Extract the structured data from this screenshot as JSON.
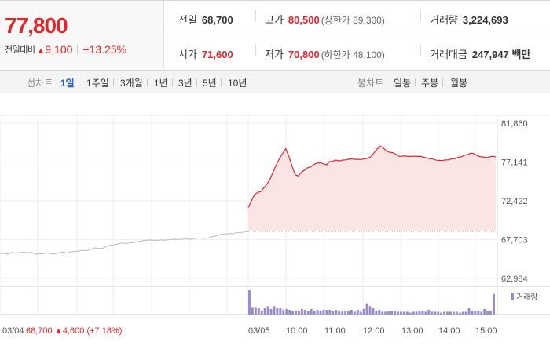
{
  "header": {
    "price": "77,800",
    "change_label": "전일대비",
    "change_arrow": "▲",
    "change_value": "9,100",
    "change_pct": "+13.25%"
  },
  "stats": {
    "prev_close": {
      "label": "전일",
      "value": "68,700"
    },
    "high": {
      "label": "고가",
      "value": "80,500",
      "sub": "(상한가 89,300)"
    },
    "volume": {
      "label": "거래량",
      "value": "3,224,693"
    },
    "open": {
      "label": "시가",
      "value": "71,600"
    },
    "low": {
      "label": "저가",
      "value": "70,800",
      "sub": "(하한가 48,100)"
    },
    "amount": {
      "label": "거래대금",
      "value": "247,947 백만"
    }
  },
  "tabs": {
    "line_title": "선차트",
    "line_items": [
      "1일",
      "1주일",
      "3개월",
      "1년",
      "3년",
      "5년",
      "10년"
    ],
    "active_index": 0,
    "candle_title": "봉차트",
    "candle_items": [
      "일봉",
      "주봉",
      "월봉"
    ]
  },
  "chart_data": {
    "type": "line",
    "y_ticks": [
      "81,860",
      "77,141",
      "72,422",
      "67,703",
      "62,984"
    ],
    "ylim": [
      62984,
      81860
    ],
    "x_ticks": [
      "03/05",
      "10:00",
      "11:00",
      "12:00",
      "13:00",
      "14:00",
      "15:00"
    ],
    "prev_day_label": "03/04",
    "prev_day_close": "68,700",
    "prev_day_change": "▲4,600 (+7.18%)",
    "volume_legend": "거래량",
    "colors": {
      "up": "#e1262c",
      "prev": "#bbbbbb",
      "fill": "#fbe4e4",
      "volume": "#9c8ac9"
    },
    "prev_day_series": [
      66010,
      66046,
      65958,
      66178,
      66042,
      66144,
      66174,
      66102,
      66190,
      65943,
      65983,
      66001,
      66121,
      65990,
      65958,
      66123,
      66217,
      66063,
      66228,
      66273,
      66319,
      66417,
      66368,
      66503,
      66697,
      66627,
      66649,
      66862,
      67027,
      67055,
      67180,
      67306,
      67226,
      67321,
      67348,
      67461,
      67549,
      67617,
      67654,
      67622,
      67622,
      67674,
      67629,
      67706,
      67756,
      67741,
      67725,
      67830,
      67725,
      67832,
      67877,
      67890,
      67861,
      67920,
      68081,
      68169,
      68348,
      68332,
      68451,
      68422,
      68550,
      68556,
      68627,
      68700
    ],
    "today_series": [
      71600,
      72411,
      73193,
      73453,
      73547,
      74010,
      74460,
      75089,
      76001,
      76836,
      77599,
      78184,
      78757,
      77804,
      76631,
      75582,
      75450,
      75918,
      76167,
      76463,
      76563,
      76858,
      77013,
      77056,
      76919,
      76804,
      77189,
      77225,
      77376,
      77264,
      77366,
      77396,
      77473,
      77534,
      77455,
      77477,
      77445,
      77518,
      77585,
      77738,
      78175,
      78646,
      79074,
      78883,
      78509,
      78334,
      78292,
      78114,
      77825,
      77837,
      77876,
      77832,
      77808,
      77854,
      77821,
      77831,
      77725,
      77639,
      77533,
      77502,
      77360,
      77343,
      77324,
      77393,
      77399,
      77543,
      77546,
      77722,
      77770,
      77964,
      78015,
      78219,
      78158,
      77933,
      77773,
      77758,
      77667,
      77769,
      77838,
      77763
    ],
    "volume_series": [
      26,
      8,
      8,
      7,
      4,
      7,
      9,
      6,
      9,
      7,
      7,
      5,
      6,
      5,
      4,
      4,
      4,
      6,
      5,
      4,
      6,
      4,
      5,
      4,
      5,
      5,
      5,
      4,
      5,
      4,
      3,
      4,
      4,
      5,
      3,
      5,
      3,
      6,
      12,
      9,
      7,
      4,
      5,
      3,
      3,
      4,
      4,
      4,
      3,
      3,
      3,
      3,
      2,
      3,
      3,
      4,
      4,
      3,
      5,
      3,
      3,
      3,
      2,
      3,
      3,
      3,
      3,
      3,
      2,
      3,
      3,
      7,
      4,
      4,
      4,
      3,
      6,
      4,
      4,
      22
    ]
  }
}
